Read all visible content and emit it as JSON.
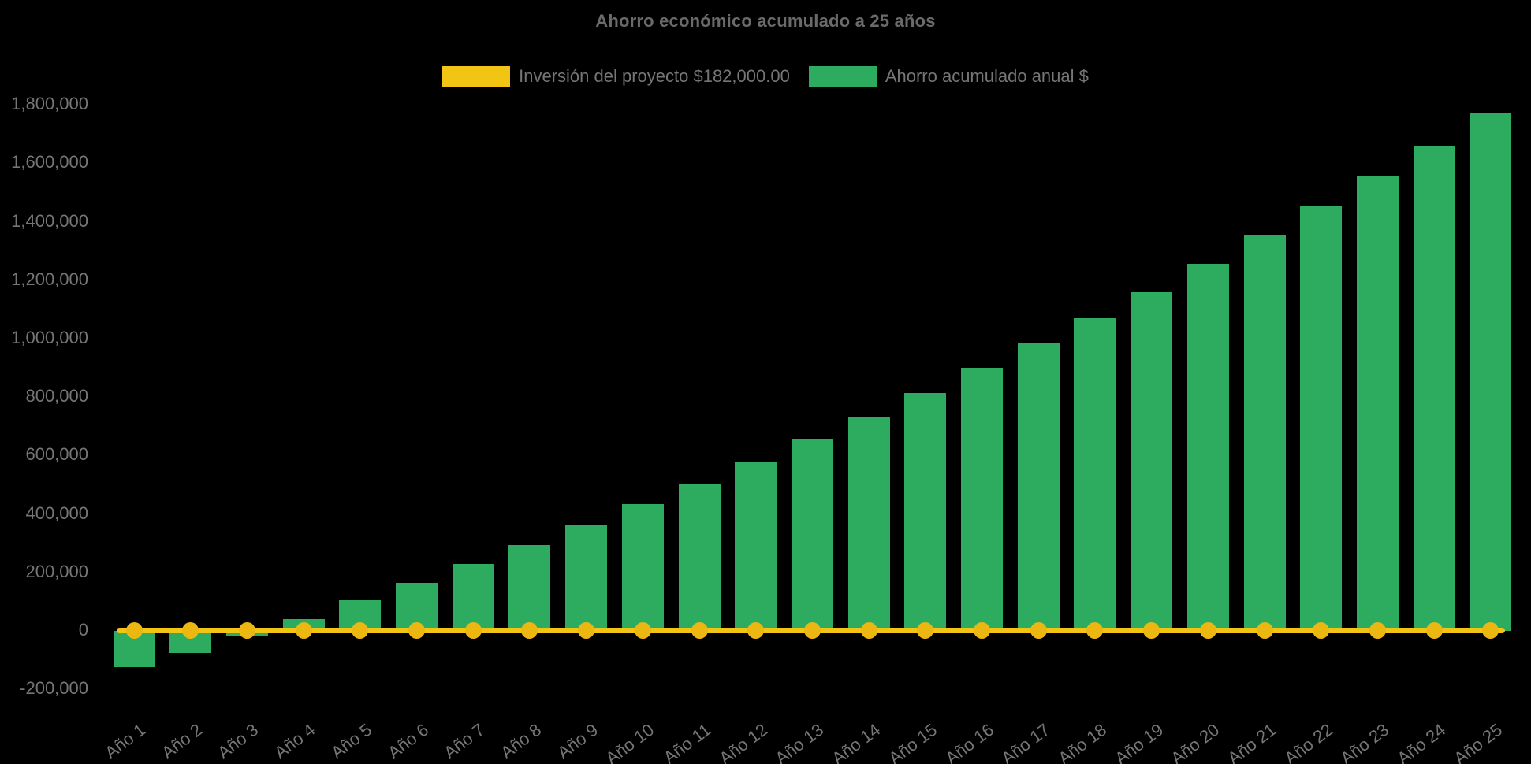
{
  "chart_data": {
    "type": "bar",
    "title": "Ahorro económico acumulado a 25 años",
    "background": "#000000",
    "text_color": "#767676",
    "title_color": "#6a6a6a",
    "grid": false,
    "legend_position": "top",
    "categories": [
      "Año 1",
      "Año 2",
      "Año 3",
      "Año 4",
      "Año 5",
      "Año 6",
      "Año 7",
      "Año 8",
      "Año 9",
      "Año 10",
      "Año 11",
      "Año 12",
      "Año 13",
      "Año 14",
      "Año 15",
      "Año 16",
      "Año 17",
      "Año 18",
      "Año 19",
      "Año 20",
      "Año 21",
      "Año 22",
      "Año 23",
      "Año 24",
      "Año 25"
    ],
    "series": [
      {
        "name": "Inversión del proyecto $182,000.00",
        "type": "line",
        "color": "#F2C515",
        "marker_color": "#EDB711",
        "values": [
          0,
          0,
          0,
          0,
          0,
          0,
          0,
          0,
          0,
          0,
          0,
          0,
          0,
          0,
          0,
          0,
          0,
          0,
          0,
          0,
          0,
          0,
          0,
          0,
          0
        ]
      },
      {
        "name": "Ahorro acumulado anual $",
        "type": "bar",
        "color": "#2DAC5F",
        "values": [
          -125000,
          -75000,
          -20000,
          40000,
          105000,
          165000,
          230000,
          295000,
          360000,
          435000,
          505000,
          580000,
          655000,
          730000,
          815000,
          900000,
          985000,
          1070000,
          1160000,
          1255000,
          1355000,
          1455000,
          1555000,
          1660000,
          1770000
        ]
      }
    ],
    "ylim": [
      -200000,
      1800000
    ],
    "ytick_step": 200000,
    "yticks": [
      {
        "value": 1800000,
        "label": "1,800,000"
      },
      {
        "value": 1600000,
        "label": "1,600,000"
      },
      {
        "value": 1400000,
        "label": "1,400,000"
      },
      {
        "value": 1200000,
        "label": "1,200,000"
      },
      {
        "value": 1000000,
        "label": "1,000,000"
      },
      {
        "value": 800000,
        "label": "800,000"
      },
      {
        "value": 600000,
        "label": "600,000"
      },
      {
        "value": 400000,
        "label": "400,000"
      },
      {
        "value": 200000,
        "label": "200,000"
      },
      {
        "value": 0,
        "label": "0"
      },
      {
        "value": -200000,
        "label": "-200,000"
      }
    ]
  }
}
